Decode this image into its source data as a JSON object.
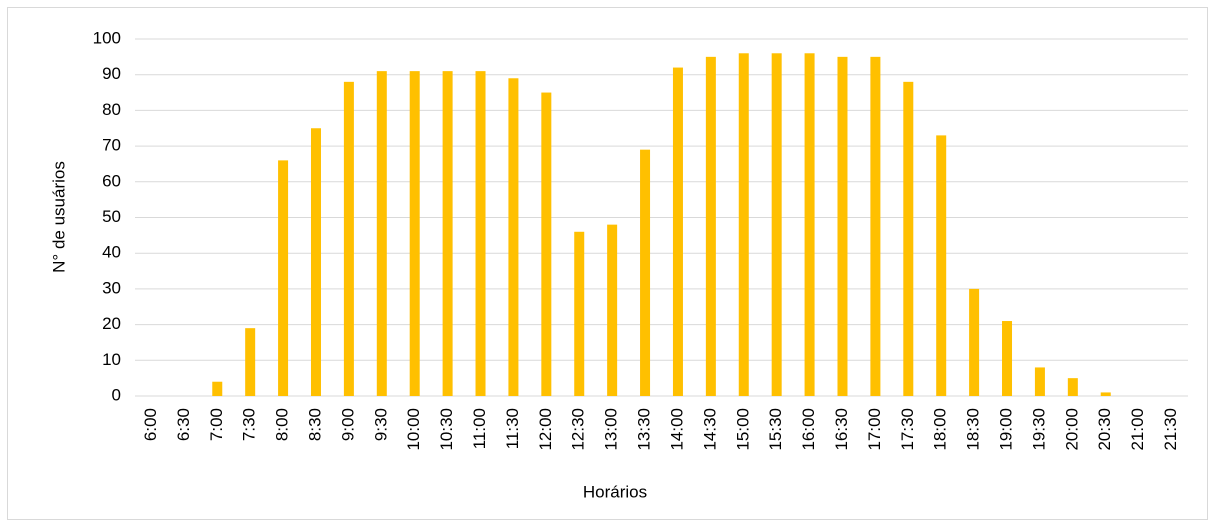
{
  "chart_data": {
    "type": "bar",
    "categories": [
      "6:00",
      "6:30",
      "7:00",
      "7:30",
      "8:00",
      "8:30",
      "9:00",
      "9:30",
      "10:00",
      "10:30",
      "11:00",
      "11:30",
      "12:00",
      "12:30",
      "13:00",
      "13:30",
      "14:00",
      "14:30",
      "15:00",
      "15:30",
      "16:00",
      "16:30",
      "17:00",
      "17:30",
      "18:00",
      "18:30",
      "19:00",
      "19:30",
      "20:00",
      "20:30",
      "21:00",
      "21:30"
    ],
    "values": [
      0,
      0,
      4,
      19,
      66,
      75,
      88,
      91,
      91,
      91,
      91,
      89,
      85,
      46,
      48,
      69,
      92,
      95,
      96,
      96,
      96,
      95,
      95,
      88,
      73,
      30,
      21,
      8,
      5,
      1,
      0,
      0
    ],
    "color": "#ffc000",
    "x_label": "Horários",
    "y_label": "N° de usuários",
    "ylim": [
      0,
      100
    ],
    "yticks": [
      0,
      10,
      20,
      30,
      40,
      50,
      60,
      70,
      80,
      90,
      100
    ],
    "grid": true
  }
}
